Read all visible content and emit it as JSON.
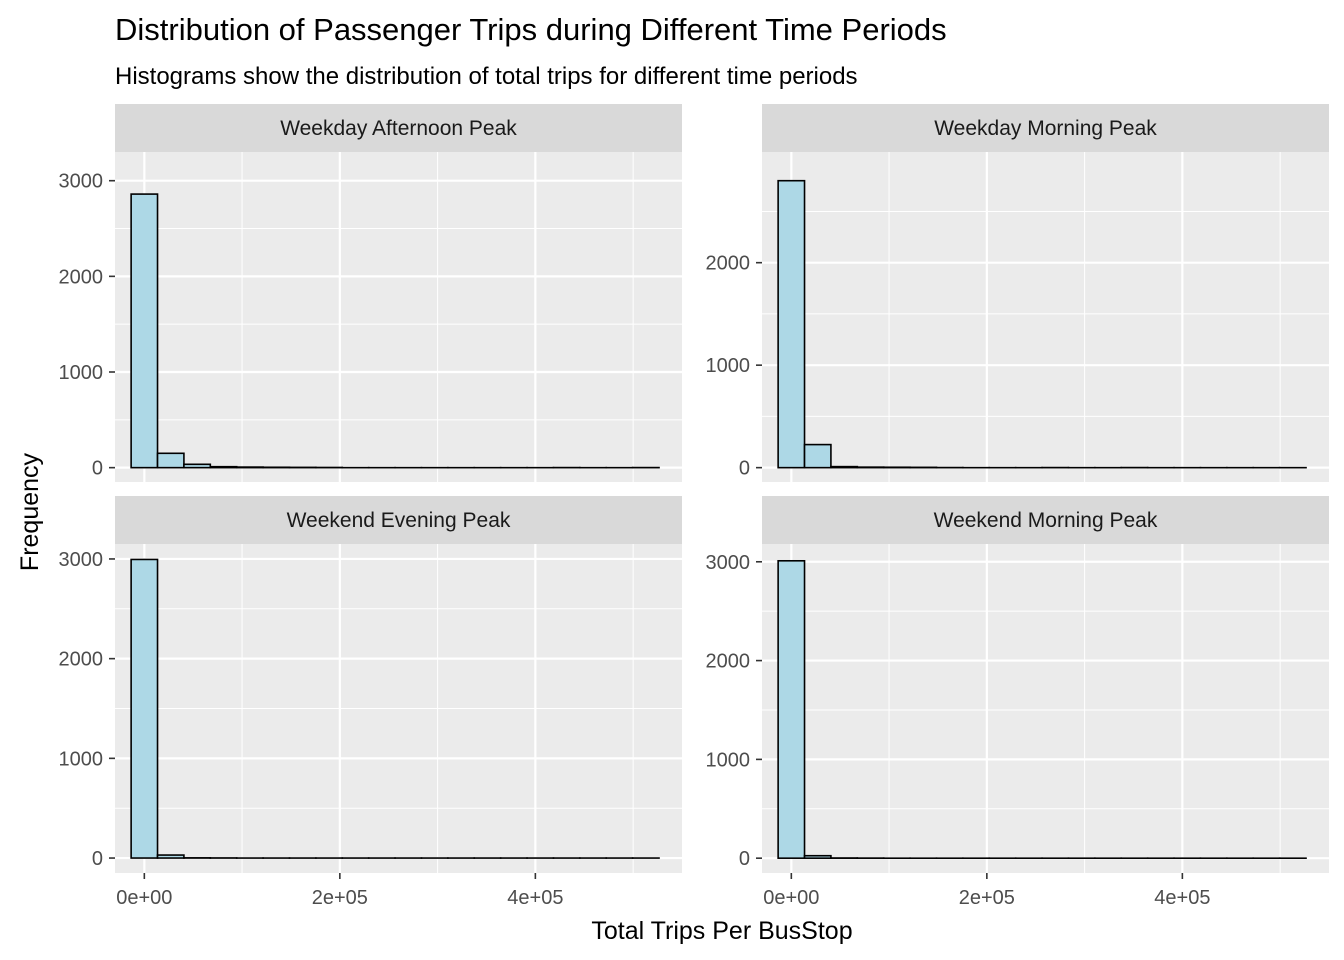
{
  "chart_data": {
    "type": "bar",
    "title": "Distribution of Passenger Trips during Different Time Periods",
    "subtitle": "Histograms show the distribution of total trips for different time periods",
    "xlabel": "Total Trips Per BusStop",
    "ylabel": "Frequency",
    "xlim": [
      -30000,
      550000
    ],
    "x_ticks": [
      0,
      200000,
      400000
    ],
    "x_tick_labels": [
      "0e+00",
      "2e+05",
      "4e+05"
    ],
    "bin_width": 27000,
    "bin_start": -13500,
    "grid": true,
    "colors": {
      "fill": "#add8e6",
      "outline": "#000000",
      "panel": "#ebebeb",
      "strip": "#d9d9d9",
      "grid": "#ffffff"
    },
    "panels": [
      {
        "name": "Weekday Afternoon Peak",
        "ylim": [
          -150,
          3300
        ],
        "y_ticks": [
          0,
          1000,
          2000,
          3000
        ],
        "counts": [
          2860,
          150,
          35,
          10,
          6,
          4,
          3,
          2,
          0,
          0,
          0,
          0,
          0,
          0,
          0,
          0,
          1,
          0,
          0,
          1
        ]
      },
      {
        "name": "Weekday Morning Peak",
        "ylim": [
          -140,
          3080
        ],
        "y_ticks": [
          0,
          1000,
          2000
        ],
        "counts": [
          2800,
          225,
          10,
          5,
          4,
          3,
          1,
          0,
          0,
          0,
          1,
          0,
          0,
          1,
          0,
          0,
          0,
          0,
          0,
          0
        ]
      },
      {
        "name": "Weekend Evening Peak",
        "ylim": [
          -150,
          3150
        ],
        "y_ticks": [
          0,
          1000,
          2000,
          3000
        ],
        "counts": [
          2995,
          30,
          2,
          1,
          0,
          0,
          0,
          0,
          0,
          0,
          0,
          0,
          0,
          0,
          0,
          0,
          0,
          0,
          0,
          0
        ]
      },
      {
        "name": "Weekend Morning Peak",
        "ylim": [
          -150,
          3180
        ],
        "y_ticks": [
          0,
          1000,
          2000,
          3000
        ],
        "counts": [
          3010,
          25,
          2,
          1,
          0,
          0,
          0,
          0,
          0,
          0,
          0,
          0,
          0,
          0,
          0,
          0,
          0,
          0,
          0,
          0
        ]
      }
    ]
  }
}
